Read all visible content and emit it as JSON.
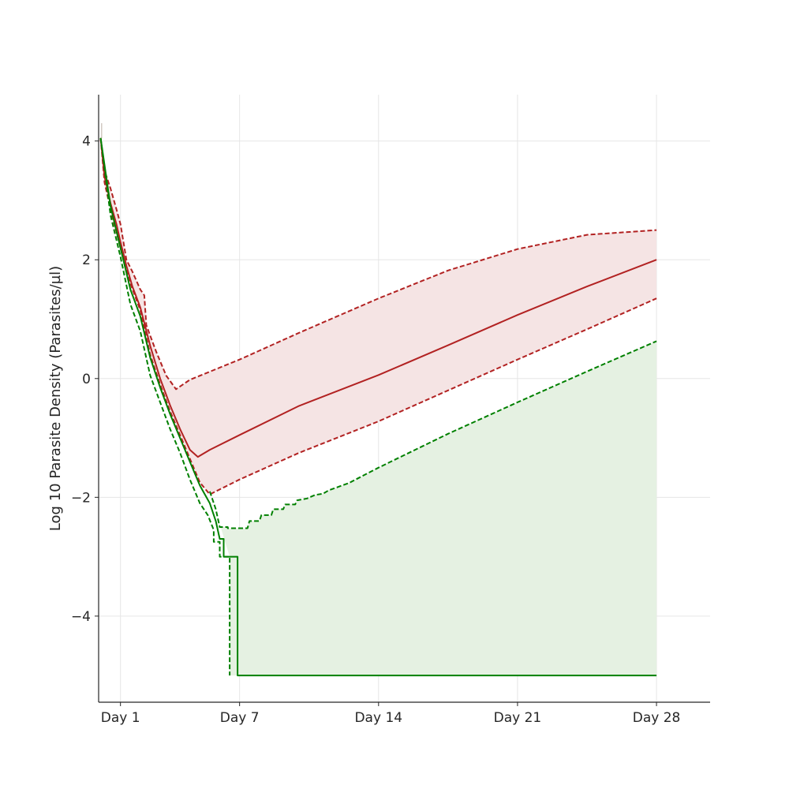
{
  "chart_data": {
    "type": "line",
    "title": "",
    "xlabel": "",
    "ylabel": "Log 10 Parasite Density (Parasites/µl)",
    "xlim": [
      -0.1,
      30.7
    ],
    "ylim": [
      -5.45,
      4.78
    ],
    "grid": true,
    "legend": "none",
    "x_ticks": [
      {
        "value": 1,
        "label": "Day 1"
      },
      {
        "value": 7,
        "label": "Day 7"
      },
      {
        "value": 14,
        "label": "Day 14"
      },
      {
        "value": 21,
        "label": "Day 21"
      },
      {
        "value": 28,
        "label": "Day 28"
      }
    ],
    "y_ticks": [
      {
        "value": 4,
        "label": "4"
      },
      {
        "value": 2,
        "label": "2"
      },
      {
        "value": 0,
        "label": "0"
      },
      {
        "value": -2,
        "label": "−2"
      },
      {
        "value": -4,
        "label": "−4"
      }
    ],
    "colors": {
      "red": "#b22222",
      "red_fill": "#f5e4e4",
      "green": "#008000",
      "green_fill": "#e5f1e2",
      "grid": "#e6e6e6",
      "axis": "#262626",
      "spike": "#d2c9c2"
    },
    "series": [
      {
        "color": "red",
        "style": "solid",
        "points": [
          [
            0,
            4.05
          ],
          [
            0.2,
            3.4
          ],
          [
            0.5,
            2.95
          ],
          [
            0.8,
            2.6
          ],
          [
            1.0,
            2.3
          ],
          [
            1.3,
            1.9
          ],
          [
            1.6,
            1.55
          ],
          [
            2.0,
            1.2
          ],
          [
            2.5,
            0.55
          ],
          [
            3.0,
            0.0
          ],
          [
            3.5,
            -0.45
          ],
          [
            4.0,
            -0.85
          ],
          [
            4.5,
            -1.2
          ],
          [
            4.9,
            -1.32
          ],
          [
            5.5,
            -1.2
          ],
          [
            7,
            -0.95
          ],
          [
            10,
            -0.46
          ],
          [
            14,
            0.06
          ],
          [
            17.5,
            0.56
          ],
          [
            21,
            1.07
          ],
          [
            24.5,
            1.55
          ],
          [
            28,
            2.0
          ]
        ]
      },
      {
        "color": "red",
        "style": "dashed",
        "points": [
          [
            0,
            4.05
          ],
          [
            0.2,
            3.5
          ],
          [
            0.5,
            3.2
          ],
          [
            0.8,
            2.85
          ],
          [
            1.0,
            2.6
          ],
          [
            1.3,
            2.0
          ],
          [
            1.6,
            1.8
          ],
          [
            2.0,
            1.5
          ],
          [
            2.2,
            1.4
          ],
          [
            2.3,
            0.9
          ],
          [
            2.8,
            0.45
          ],
          [
            3.3,
            0.05
          ],
          [
            3.8,
            -0.18
          ],
          [
            4.5,
            -0.02
          ],
          [
            7,
            0.32
          ],
          [
            10,
            0.77
          ],
          [
            14,
            1.35
          ],
          [
            17.5,
            1.82
          ],
          [
            21,
            2.18
          ],
          [
            24.5,
            2.42
          ],
          [
            28,
            2.5
          ]
        ]
      },
      {
        "color": "red",
        "style": "dashed",
        "points": [
          [
            0,
            4.05
          ],
          [
            0.2,
            3.3
          ],
          [
            0.5,
            2.85
          ],
          [
            1.0,
            2.2
          ],
          [
            1.5,
            1.6
          ],
          [
            2.0,
            1.15
          ],
          [
            2.5,
            0.4
          ],
          [
            3.0,
            -0.1
          ],
          [
            3.5,
            -0.55
          ],
          [
            4.0,
            -0.95
          ],
          [
            4.5,
            -1.35
          ],
          [
            5.0,
            -1.75
          ],
          [
            5.5,
            -1.95
          ],
          [
            7,
            -1.7
          ],
          [
            10,
            -1.25
          ],
          [
            14,
            -0.72
          ],
          [
            17.5,
            -0.2
          ],
          [
            21,
            0.32
          ],
          [
            24.5,
            0.83
          ],
          [
            28,
            1.35
          ]
        ]
      },
      {
        "color": "green",
        "style": "solid",
        "points": [
          [
            0,
            4.05
          ],
          [
            0.5,
            2.9
          ],
          [
            1.0,
            2.2
          ],
          [
            1.5,
            1.5
          ],
          [
            2.0,
            1.05
          ],
          [
            2.5,
            0.35
          ],
          [
            3.0,
            -0.15
          ],
          [
            3.5,
            -0.6
          ],
          [
            4.0,
            -1.0
          ],
          [
            4.5,
            -1.4
          ],
          [
            5.0,
            -1.8
          ],
          [
            5.5,
            -2.1
          ],
          [
            5.8,
            -2.4
          ],
          [
            6.0,
            -2.7
          ],
          [
            6.2,
            -2.7
          ],
          [
            6.2,
            -3.0
          ],
          [
            6.9,
            -3.0
          ],
          [
            6.9,
            -5.0
          ],
          [
            28,
            -5.0
          ]
        ]
      },
      {
        "color": "green",
        "style": "dashed",
        "points": [
          [
            0,
            4.05
          ],
          [
            0.5,
            2.75
          ],
          [
            1.0,
            2.05
          ],
          [
            1.5,
            1.25
          ],
          [
            2.0,
            0.8
          ],
          [
            2.5,
            0.05
          ],
          [
            3.0,
            -0.4
          ],
          [
            3.5,
            -0.85
          ],
          [
            4.0,
            -1.25
          ],
          [
            4.5,
            -1.7
          ],
          [
            5.0,
            -2.1
          ],
          [
            5.4,
            -2.3
          ],
          [
            5.7,
            -2.55
          ],
          [
            5.7,
            -2.75
          ],
          [
            6.0,
            -2.75
          ],
          [
            6.0,
            -3.0
          ],
          [
            6.5,
            -3.0
          ],
          [
            6.5,
            -5.0
          ]
        ]
      },
      {
        "color": "green",
        "style": "dashed",
        "points": [
          [
            5.5,
            -1.9
          ],
          [
            5.8,
            -2.2
          ],
          [
            6.0,
            -2.5
          ],
          [
            6.4,
            -2.5
          ],
          [
            6.4,
            -2.52
          ],
          [
            7.4,
            -2.52
          ],
          [
            7.5,
            -2.4
          ],
          [
            8.0,
            -2.4
          ],
          [
            8.1,
            -2.3
          ],
          [
            8.6,
            -2.3
          ],
          [
            8.7,
            -2.2
          ],
          [
            9.2,
            -2.2
          ],
          [
            9.3,
            -2.12
          ],
          [
            9.8,
            -2.12
          ],
          [
            9.9,
            -2.05
          ],
          [
            10.4,
            -2.02
          ],
          [
            10.8,
            -1.96
          ],
          [
            11.2,
            -1.94
          ],
          [
            11.5,
            -1.88
          ],
          [
            12.5,
            -1.76
          ],
          [
            14,
            -1.5
          ],
          [
            17.5,
            -0.93
          ],
          [
            21,
            -0.4
          ],
          [
            24.5,
            0.12
          ],
          [
            28,
            0.63
          ]
        ]
      }
    ],
    "bands": [
      {
        "color": "red_fill",
        "upper": [
          [
            0,
            4.05
          ],
          [
            0.2,
            3.5
          ],
          [
            0.5,
            3.2
          ],
          [
            0.8,
            2.85
          ],
          [
            1.0,
            2.6
          ],
          [
            1.3,
            2.0
          ],
          [
            1.6,
            1.8
          ],
          [
            2.0,
            1.5
          ],
          [
            2.2,
            1.4
          ],
          [
            2.3,
            0.9
          ],
          [
            2.8,
            0.45
          ],
          [
            3.3,
            0.05
          ],
          [
            3.8,
            -0.18
          ],
          [
            4.5,
            -0.02
          ],
          [
            7,
            0.32
          ],
          [
            10,
            0.77
          ],
          [
            14,
            1.35
          ],
          [
            17.5,
            1.82
          ],
          [
            21,
            2.18
          ],
          [
            24.5,
            2.42
          ],
          [
            28,
            2.5
          ]
        ],
        "lower": [
          [
            0,
            4.05
          ],
          [
            0.2,
            3.3
          ],
          [
            0.5,
            2.85
          ],
          [
            1.0,
            2.2
          ],
          [
            1.5,
            1.6
          ],
          [
            2.0,
            1.15
          ],
          [
            2.5,
            0.4
          ],
          [
            3.0,
            -0.1
          ],
          [
            3.5,
            -0.55
          ],
          [
            4.0,
            -0.95
          ],
          [
            4.5,
            -1.35
          ],
          [
            5.0,
            -1.75
          ],
          [
            5.5,
            -1.95
          ],
          [
            7,
            -1.7
          ],
          [
            10,
            -1.25
          ],
          [
            14,
            -0.72
          ],
          [
            17.5,
            -0.2
          ],
          [
            21,
            0.32
          ],
          [
            24.5,
            0.83
          ],
          [
            28,
            1.35
          ]
        ]
      },
      {
        "color": "green_fill",
        "upper": [
          [
            5.5,
            -1.9
          ],
          [
            5.8,
            -2.2
          ],
          [
            6.0,
            -2.5
          ],
          [
            6.4,
            -2.5
          ],
          [
            6.4,
            -2.52
          ],
          [
            7.4,
            -2.52
          ],
          [
            7.5,
            -2.4
          ],
          [
            8.0,
            -2.4
          ],
          [
            8.1,
            -2.3
          ],
          [
            8.6,
            -2.3
          ],
          [
            8.7,
            -2.2
          ],
          [
            9.2,
            -2.2
          ],
          [
            9.3,
            -2.12
          ],
          [
            9.8,
            -2.12
          ],
          [
            9.9,
            -2.05
          ],
          [
            10.4,
            -2.02
          ],
          [
            10.8,
            -1.96
          ],
          [
            11.2,
            -1.94
          ],
          [
            11.5,
            -1.88
          ],
          [
            12.5,
            -1.76
          ],
          [
            14,
            -1.5
          ],
          [
            17.5,
            -0.93
          ],
          [
            21,
            -0.4
          ],
          [
            24.5,
            0.12
          ],
          [
            28,
            0.63
          ]
        ],
        "lower": [
          [
            5.5,
            -1.9
          ],
          [
            6.5,
            -3.0
          ],
          [
            6.5,
            -5.0
          ],
          [
            28,
            -5.0
          ]
        ]
      }
    ],
    "spike": {
      "x": 0.05,
      "y_top": 4.3,
      "y_bottom": 4.05
    }
  }
}
